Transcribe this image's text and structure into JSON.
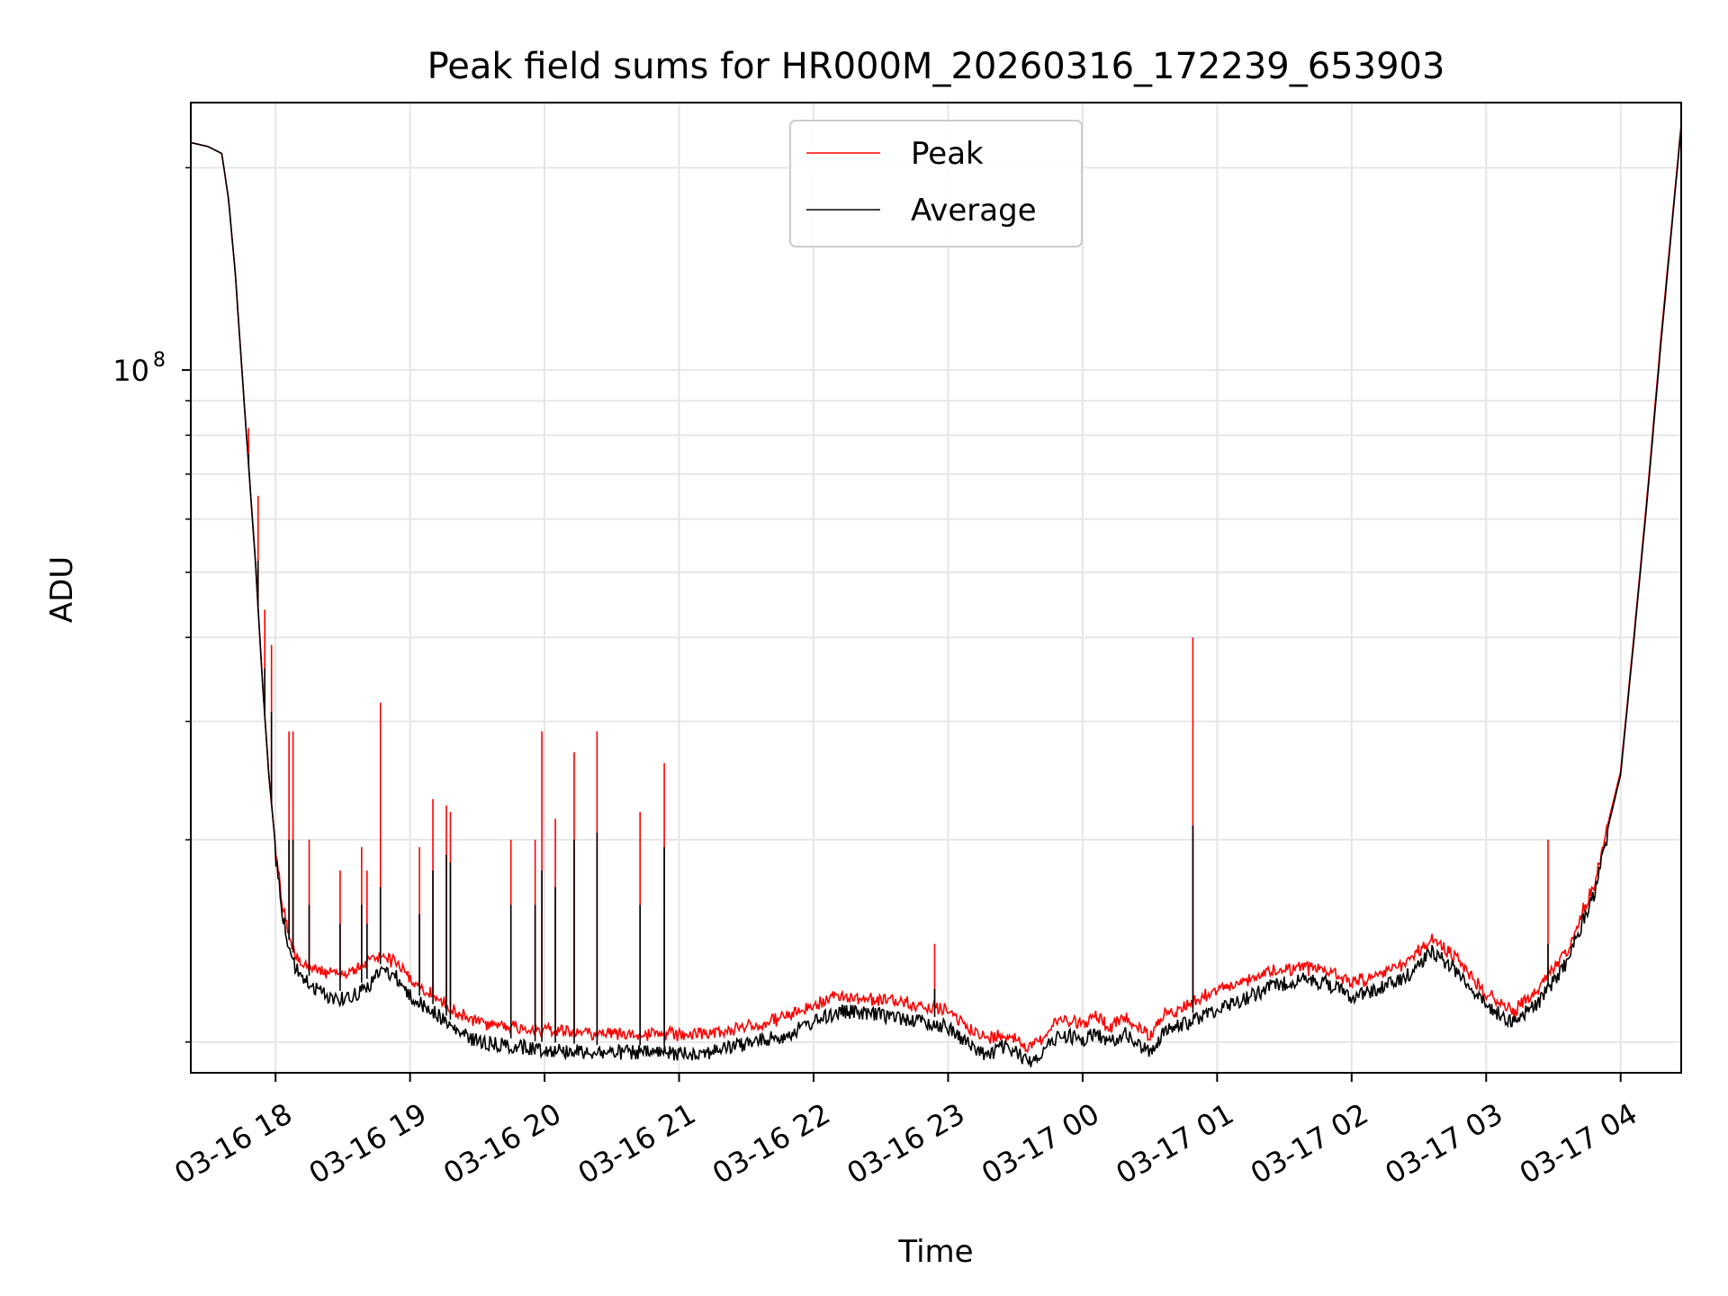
{
  "chart_data": {
    "type": "line",
    "title": "Peak field sums for HR000M_20260316_172239_653903",
    "xlabel": "Time",
    "ylabel": "ADU",
    "y_scale": "log",
    "ylim": [
      9000000,
      250000000
    ],
    "xlim_hours_since_0316_1700": [
      0.37,
      11.45
    ],
    "x_ticks": [
      {
        "hour": 1,
        "label": "03-16 18"
      },
      {
        "hour": 2,
        "label": "03-16 19"
      },
      {
        "hour": 3,
        "label": "03-16 20"
      },
      {
        "hour": 4,
        "label": "03-16 21"
      },
      {
        "hour": 5,
        "label": "03-16 22"
      },
      {
        "hour": 6,
        "label": "03-16 23"
      },
      {
        "hour": 7,
        "label": "03-17 00"
      },
      {
        "hour": 8,
        "label": "03-17 01"
      },
      {
        "hour": 9,
        "label": "03-17 02"
      },
      {
        "hour": 10,
        "label": "03-17 03"
      },
      {
        "hour": 11,
        "label": "03-17 04"
      }
    ],
    "y_major_tick": {
      "value": 100000000,
      "base": "10",
      "exp": "8"
    },
    "y_minor_ticks": [
      10000000,
      20000000,
      30000000,
      40000000,
      50000000,
      60000000,
      70000000,
      80000000,
      90000000,
      200000000
    ],
    "grid": true,
    "legend": {
      "placement": "top-center",
      "entries": [
        {
          "name": "Peak",
          "color": "#ff0000"
        },
        {
          "name": "Average",
          "color": "#000000"
        }
      ]
    },
    "series": [
      {
        "name": "Average",
        "color": "#000000",
        "x": [
          0.37,
          0.5,
          0.6,
          0.65,
          0.7,
          0.75,
          0.8,
          0.85,
          0.9,
          0.95,
          1.0,
          1.05,
          1.1,
          1.15,
          1.2,
          1.3,
          1.4,
          1.5,
          1.6,
          1.7,
          1.8,
          1.9,
          2.0,
          2.1,
          2.2,
          2.3,
          2.4,
          2.5,
          2.6,
          2.8,
          3.0,
          3.2,
          3.4,
          3.6,
          3.8,
          4.0,
          4.2,
          4.4,
          4.6,
          4.8,
          5.0,
          5.2,
          5.4,
          5.6,
          5.8,
          6.0,
          6.1,
          6.2,
          6.3,
          6.4,
          6.5,
          6.6,
          6.7,
          6.8,
          6.9,
          7.0,
          7.1,
          7.2,
          7.3,
          7.4,
          7.5,
          7.6,
          7.8,
          8.0,
          8.2,
          8.4,
          8.6,
          8.8,
          9.0,
          9.2,
          9.4,
          9.6,
          9.8,
          10.0,
          10.2,
          10.4,
          10.6,
          10.8,
          11.0,
          11.1,
          11.2,
          11.3,
          11.4,
          11.45
        ],
        "y": [
          218000000,
          215000000,
          210000000,
          180000000,
          140000000,
          100000000,
          72000000,
          52000000,
          35000000,
          25000000,
          19500000,
          16000000,
          14200000,
          13200000,
          12800000,
          12300000,
          12000000,
          11900000,
          12100000,
          12500000,
          13200000,
          12800000,
          12000000,
          11600000,
          11300000,
          10800000,
          10500000,
          10300000,
          10200000,
          10100000,
          10000000,
          9950000,
          9900000,
          9900000,
          9880000,
          9870000,
          9900000,
          10100000,
          10300000,
          10500000,
          11000000,
          11400000,
          11300000,
          11200000,
          11000000,
          10800000,
          10400000,
          10000000,
          9800000,
          10100000,
          9900000,
          9600000,
          9900000,
          10400000,
          10500000,
          10300000,
          10600000,
          10200000,
          10600000,
          10200000,
          9900000,
          10600000,
          11000000,
          11500000,
          11900000,
          12400000,
          12700000,
          12600000,
          12000000,
          12300000,
          12800000,
          14000000,
          13000000,
          11600000,
          11000000,
          11800000,
          13500000,
          17000000,
          25000000,
          40000000,
          65000000,
          110000000,
          180000000,
          230000000
        ]
      },
      {
        "name": "Peak",
        "color": "#ff0000",
        "x": [
          0.37,
          0.5,
          0.6,
          0.65,
          0.7,
          0.75,
          0.8,
          0.85,
          0.9,
          0.95,
          1.0,
          1.05,
          1.1,
          1.15,
          1.2,
          1.3,
          1.4,
          1.5,
          1.6,
          1.7,
          1.8,
          1.9,
          2.0,
          2.1,
          2.2,
          2.3,
          2.4,
          2.5,
          2.6,
          2.8,
          3.0,
          3.2,
          3.4,
          3.6,
          3.8,
          4.0,
          4.2,
          4.4,
          4.6,
          4.8,
          5.0,
          5.2,
          5.4,
          5.6,
          5.8,
          6.0,
          6.1,
          6.2,
          6.3,
          6.4,
          6.5,
          6.6,
          6.7,
          6.8,
          6.9,
          7.0,
          7.1,
          7.2,
          7.3,
          7.4,
          7.5,
          7.6,
          7.8,
          8.0,
          8.2,
          8.4,
          8.6,
          8.8,
          9.0,
          9.2,
          9.4,
          9.6,
          9.8,
          10.0,
          10.2,
          10.4,
          10.6,
          10.8,
          11.0,
          11.1,
          11.2,
          11.3,
          11.4,
          11.45
        ],
        "y": [
          218000000,
          215000000,
          210000000,
          180000000,
          140000000,
          100000000,
          72000000,
          52000000,
          35000000,
          25000000,
          19500000,
          16200000,
          14500000,
          13600000,
          13200000,
          12900000,
          12700000,
          12700000,
          12900000,
          13300000,
          13600000,
          13200000,
          12500000,
          12000000,
          11700000,
          11300000,
          11000000,
          10800000,
          10700000,
          10600000,
          10500000,
          10450000,
          10400000,
          10400000,
          10350000,
          10330000,
          10380000,
          10500000,
          10700000,
          11000000,
          11400000,
          11800000,
          11700000,
          11600000,
          11400000,
          11200000,
          10800000,
          10400000,
          10200000,
          10400000,
          10200000,
          9900000,
          10200000,
          10800000,
          10900000,
          10700000,
          11000000,
          10600000,
          11000000,
          10600000,
          10300000,
          11000000,
          11500000,
          12000000,
          12400000,
          12800000,
          13000000,
          12900000,
          12400000,
          12600000,
          13200000,
          14300000,
          13300000,
          11900000,
          11200000,
          12100000,
          13800000,
          17300000,
          25300000,
          40500000,
          66000000,
          112000000,
          182000000,
          232000000
        ]
      }
    ],
    "spikes": [
      {
        "hour": 0.8,
        "peak": 82000000,
        "average": 75000000
      },
      {
        "hour": 0.87,
        "peak": 65000000,
        "average": 52000000
      },
      {
        "hour": 0.92,
        "peak": 44000000,
        "average": 36000000
      },
      {
        "hour": 0.97,
        "peak": 39000000,
        "average": 31000000
      },
      {
        "hour": 1.1,
        "peak": 29000000,
        "average": 20000000
      },
      {
        "hour": 1.13,
        "peak": 29000000,
        "average": 20000000
      },
      {
        "hour": 1.25,
        "peak": 20000000,
        "average": 16000000
      },
      {
        "hour": 1.48,
        "peak": 18000000,
        "average": 15000000
      },
      {
        "hour": 1.64,
        "peak": 19500000,
        "average": 16000000
      },
      {
        "hour": 1.68,
        "peak": 18000000,
        "average": 15000000
      },
      {
        "hour": 1.78,
        "peak": 32000000,
        "average": 17000000
      },
      {
        "hour": 2.07,
        "peak": 19500000,
        "average": 15500000
      },
      {
        "hour": 2.17,
        "peak": 23000000,
        "average": 18000000
      },
      {
        "hour": 2.27,
        "peak": 22500000,
        "average": 19000000
      },
      {
        "hour": 2.3,
        "peak": 22000000,
        "average": 18500000
      },
      {
        "hour": 2.75,
        "peak": 20000000,
        "average": 16000000
      },
      {
        "hour": 2.93,
        "peak": 20000000,
        "average": 16000000
      },
      {
        "hour": 2.98,
        "peak": 29000000,
        "average": 18000000
      },
      {
        "hour": 3.08,
        "peak": 21500000,
        "average": 17000000
      },
      {
        "hour": 3.22,
        "peak": 27000000,
        "average": 20000000
      },
      {
        "hour": 3.39,
        "peak": 29000000,
        "average": 20500000
      },
      {
        "hour": 3.71,
        "peak": 22000000,
        "average": 16000000
      },
      {
        "hour": 3.89,
        "peak": 26000000,
        "average": 19500000
      },
      {
        "hour": 5.9,
        "peak": 14000000,
        "average": 12000000
      },
      {
        "hour": 7.82,
        "peak": 40000000,
        "average": 21000000
      },
      {
        "hour": 10.46,
        "peak": 20000000,
        "average": 14000000
      }
    ]
  }
}
